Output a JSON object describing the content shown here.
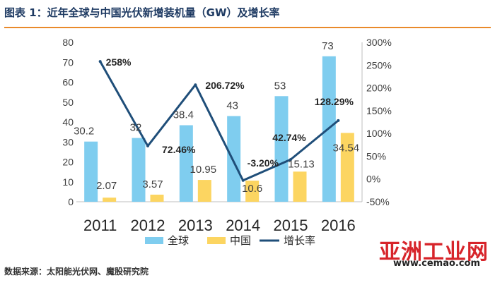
{
  "header": {
    "title": "图表 1：近年全球与中国光伏新增装机量（GW）及增长率"
  },
  "footer": {
    "source": "数据来源：太阳能光伏网、魔股研究院"
  },
  "watermark": {
    "name": "亚洲工业网",
    "url": "www.cemao.com"
  },
  "chart_data": {
    "type": "bar",
    "categories": [
      "2011",
      "2012",
      "2013",
      "2014",
      "2015",
      "2016"
    ],
    "series": [
      {
        "name": "全球",
        "kind": "bar",
        "axis": "left",
        "color": "#7fcdef",
        "values": [
          30.2,
          32,
          38.4,
          43,
          53,
          73
        ],
        "labels": [
          "30.2",
          "32",
          "38.4",
          "43",
          "53",
          "73"
        ]
      },
      {
        "name": "中国",
        "kind": "bar",
        "axis": "left",
        "color": "#fcd561",
        "values": [
          2.07,
          3.57,
          10.95,
          10.6,
          15.13,
          34.54
        ],
        "labels": [
          "2.07",
          "3.57",
          "10.95",
          "10.6",
          "15.13",
          "34.54"
        ]
      },
      {
        "name": "增长率",
        "kind": "line",
        "axis": "right",
        "color": "#1f4e79",
        "values": [
          258,
          72.46,
          206.72,
          -3.2,
          42.74,
          128.29
        ],
        "labels": [
          "258%",
          "72.46%",
          "206.72%",
          "-3.20%",
          "42.74%",
          "128.29%"
        ]
      }
    ],
    "y_left": {
      "min": 0,
      "max": 80,
      "step": 10
    },
    "y_right": {
      "min": -50,
      "max": 300,
      "step": 50,
      "ticks": [
        "-50%",
        "0%",
        "50%",
        "100%",
        "150%",
        "200%",
        "250%",
        "300%"
      ]
    },
    "legend": {
      "position": "bottom",
      "items": [
        "全球",
        "中国",
        "增长率"
      ]
    },
    "grid": false
  }
}
